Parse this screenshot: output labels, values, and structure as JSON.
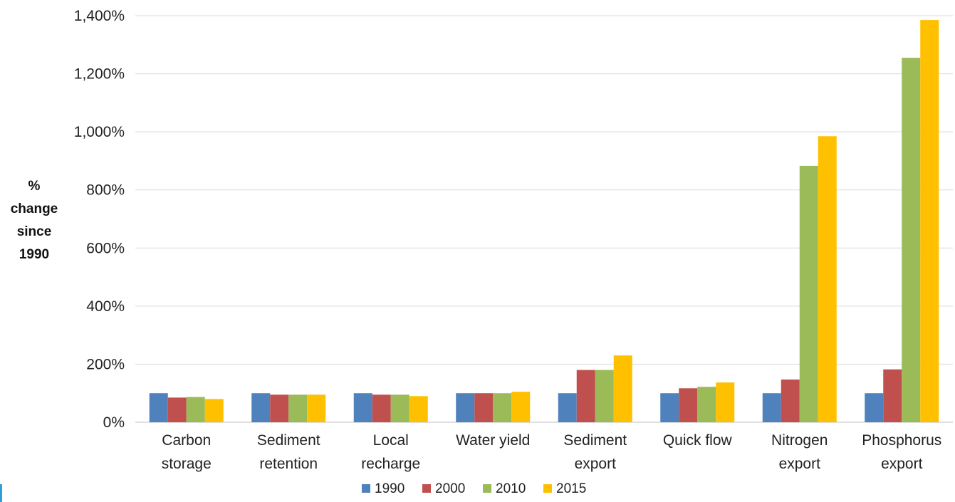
{
  "chart_data": {
    "type": "bar",
    "title": "",
    "xlabel": "",
    "ylabel": [
      "%",
      "change",
      "since",
      "1990"
    ],
    "ylim": [
      0,
      1400
    ],
    "yticks": [
      "0%",
      "200%",
      "400%",
      "600%",
      "800%",
      "1,000%",
      "1,200%",
      "1,400%"
    ],
    "grid": true,
    "legend_position": "bottom",
    "categories": [
      [
        "Carbon",
        "storage"
      ],
      [
        "Sediment",
        "retention"
      ],
      [
        "Local",
        "recharge"
      ],
      [
        "Water yield"
      ],
      [
        "Sediment",
        "export"
      ],
      [
        "Quick flow"
      ],
      [
        "Nitrogen",
        "export"
      ],
      [
        "Phosphorus",
        "export"
      ]
    ],
    "series": [
      {
        "name": "1990",
        "color": "#4f81bd",
        "values": [
          100,
          100,
          100,
          100,
          100,
          100,
          100,
          100
        ]
      },
      {
        "name": "2000",
        "color": "#c0504d",
        "values": [
          85,
          95,
          95,
          100,
          180,
          117,
          147,
          182
        ]
      },
      {
        "name": "2010",
        "color": "#9bbb59",
        "values": [
          87,
          95,
          95,
          100,
          180,
          122,
          883,
          1255
        ]
      },
      {
        "name": "2015",
        "color": "#ffc000",
        "values": [
          80,
          95,
          90,
          105,
          230,
          137,
          985,
          1385
        ]
      }
    ]
  }
}
